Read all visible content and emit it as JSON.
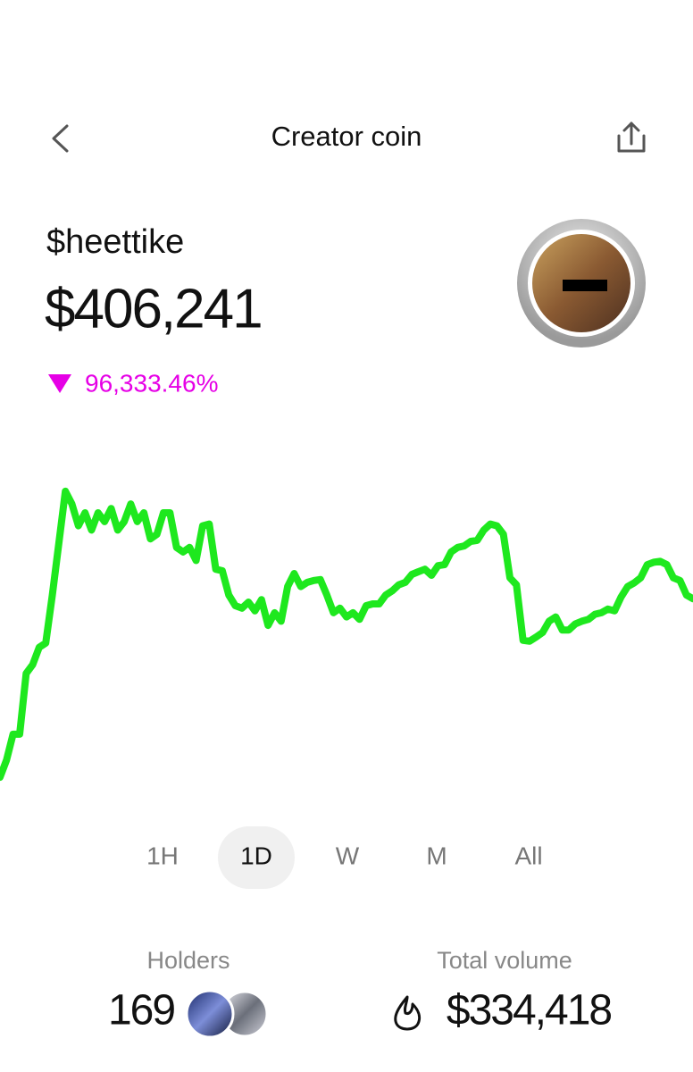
{
  "header": {
    "title": "Creator coin"
  },
  "coin": {
    "ticker": "$heettike",
    "price": "$406,241",
    "change": "96,333.46%"
  },
  "chart_data": {
    "type": "line",
    "color": "#1ee81e",
    "ylim": [
      0,
      100
    ],
    "values": [
      2.9,
      8.6,
      17.1,
      17.1,
      37.1,
      40,
      45.7,
      47.1,
      62.9,
      80,
      97.1,
      92.9,
      85.7,
      90,
      84.3,
      90,
      87.1,
      91.4,
      84.3,
      87.1,
      92.9,
      87.1,
      90,
      81.4,
      82.9,
      90,
      90,
      78.6,
      77.1,
      78.6,
      74.3,
      85.7,
      86.3,
      71.4,
      70.9,
      62.9,
      59.4,
      58.6,
      60.6,
      57.7,
      61.4,
      52.9,
      57.1,
      54.3,
      65.7,
      70,
      65.7,
      67.1,
      67.7,
      68,
      62.9,
      57.1,
      58.6,
      55.7,
      57.1,
      54.9,
      59.4,
      60,
      60,
      62.9,
      64.3,
      66.3,
      67.1,
      69.7,
      70.6,
      71.4,
      69.4,
      72.6,
      72.9,
      77.1,
      78.6,
      79.1,
      80.6,
      80.9,
      84.3,
      86.3,
      85.7,
      82.9,
      68.6,
      66.3,
      48,
      47.7,
      49.1,
      50.6,
      54.3,
      55.7,
      51.4,
      51.4,
      53.4,
      54.3,
      54.9,
      56.6,
      57.1,
      58.3,
      57.7,
      62.3,
      65.7,
      66.9,
      68.6,
      72.9,
      73.7,
      74,
      72.9,
      68.6,
      67.7,
      62.9,
      61.7
    ]
  },
  "timeframes": [
    "1H",
    "1D",
    "W",
    "M",
    "All"
  ],
  "stats": {
    "holders_label": "Holders",
    "holders": "169",
    "volume_label": "Total volume",
    "volume": "$334,418"
  }
}
